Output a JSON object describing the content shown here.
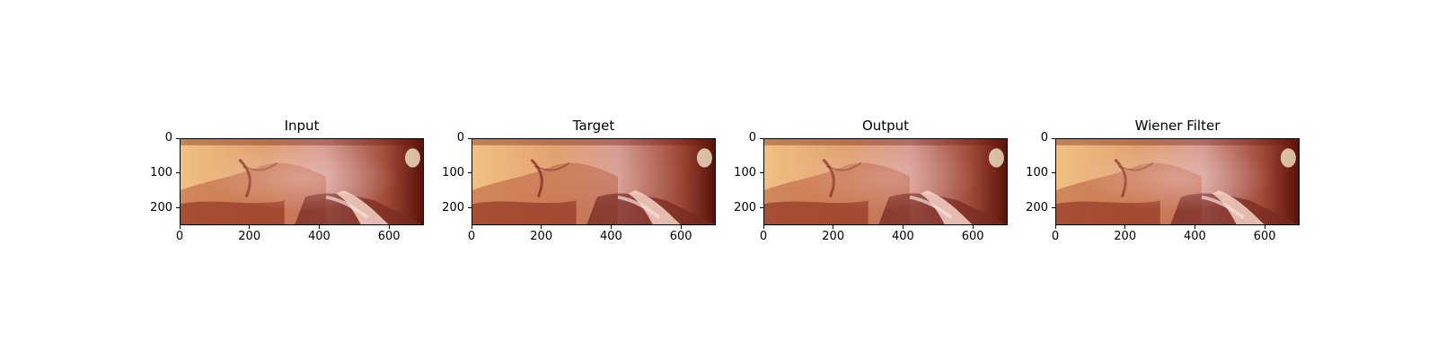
{
  "panels": [
    {
      "title": "Input"
    },
    {
      "title": "Target"
    },
    {
      "title": "Output"
    },
    {
      "title": "Wiener Filter"
    }
  ],
  "axes": {
    "x_ticks": [
      "0",
      "200",
      "400",
      "600"
    ],
    "y_ticks": [
      "0",
      "100",
      "200"
    ]
  },
  "colors": {
    "tissue_light": "#f1c083",
    "tissue_pink": "#d79c94",
    "tissue_dark": "#8a2a1c",
    "edge_dark": "#5a1208"
  }
}
